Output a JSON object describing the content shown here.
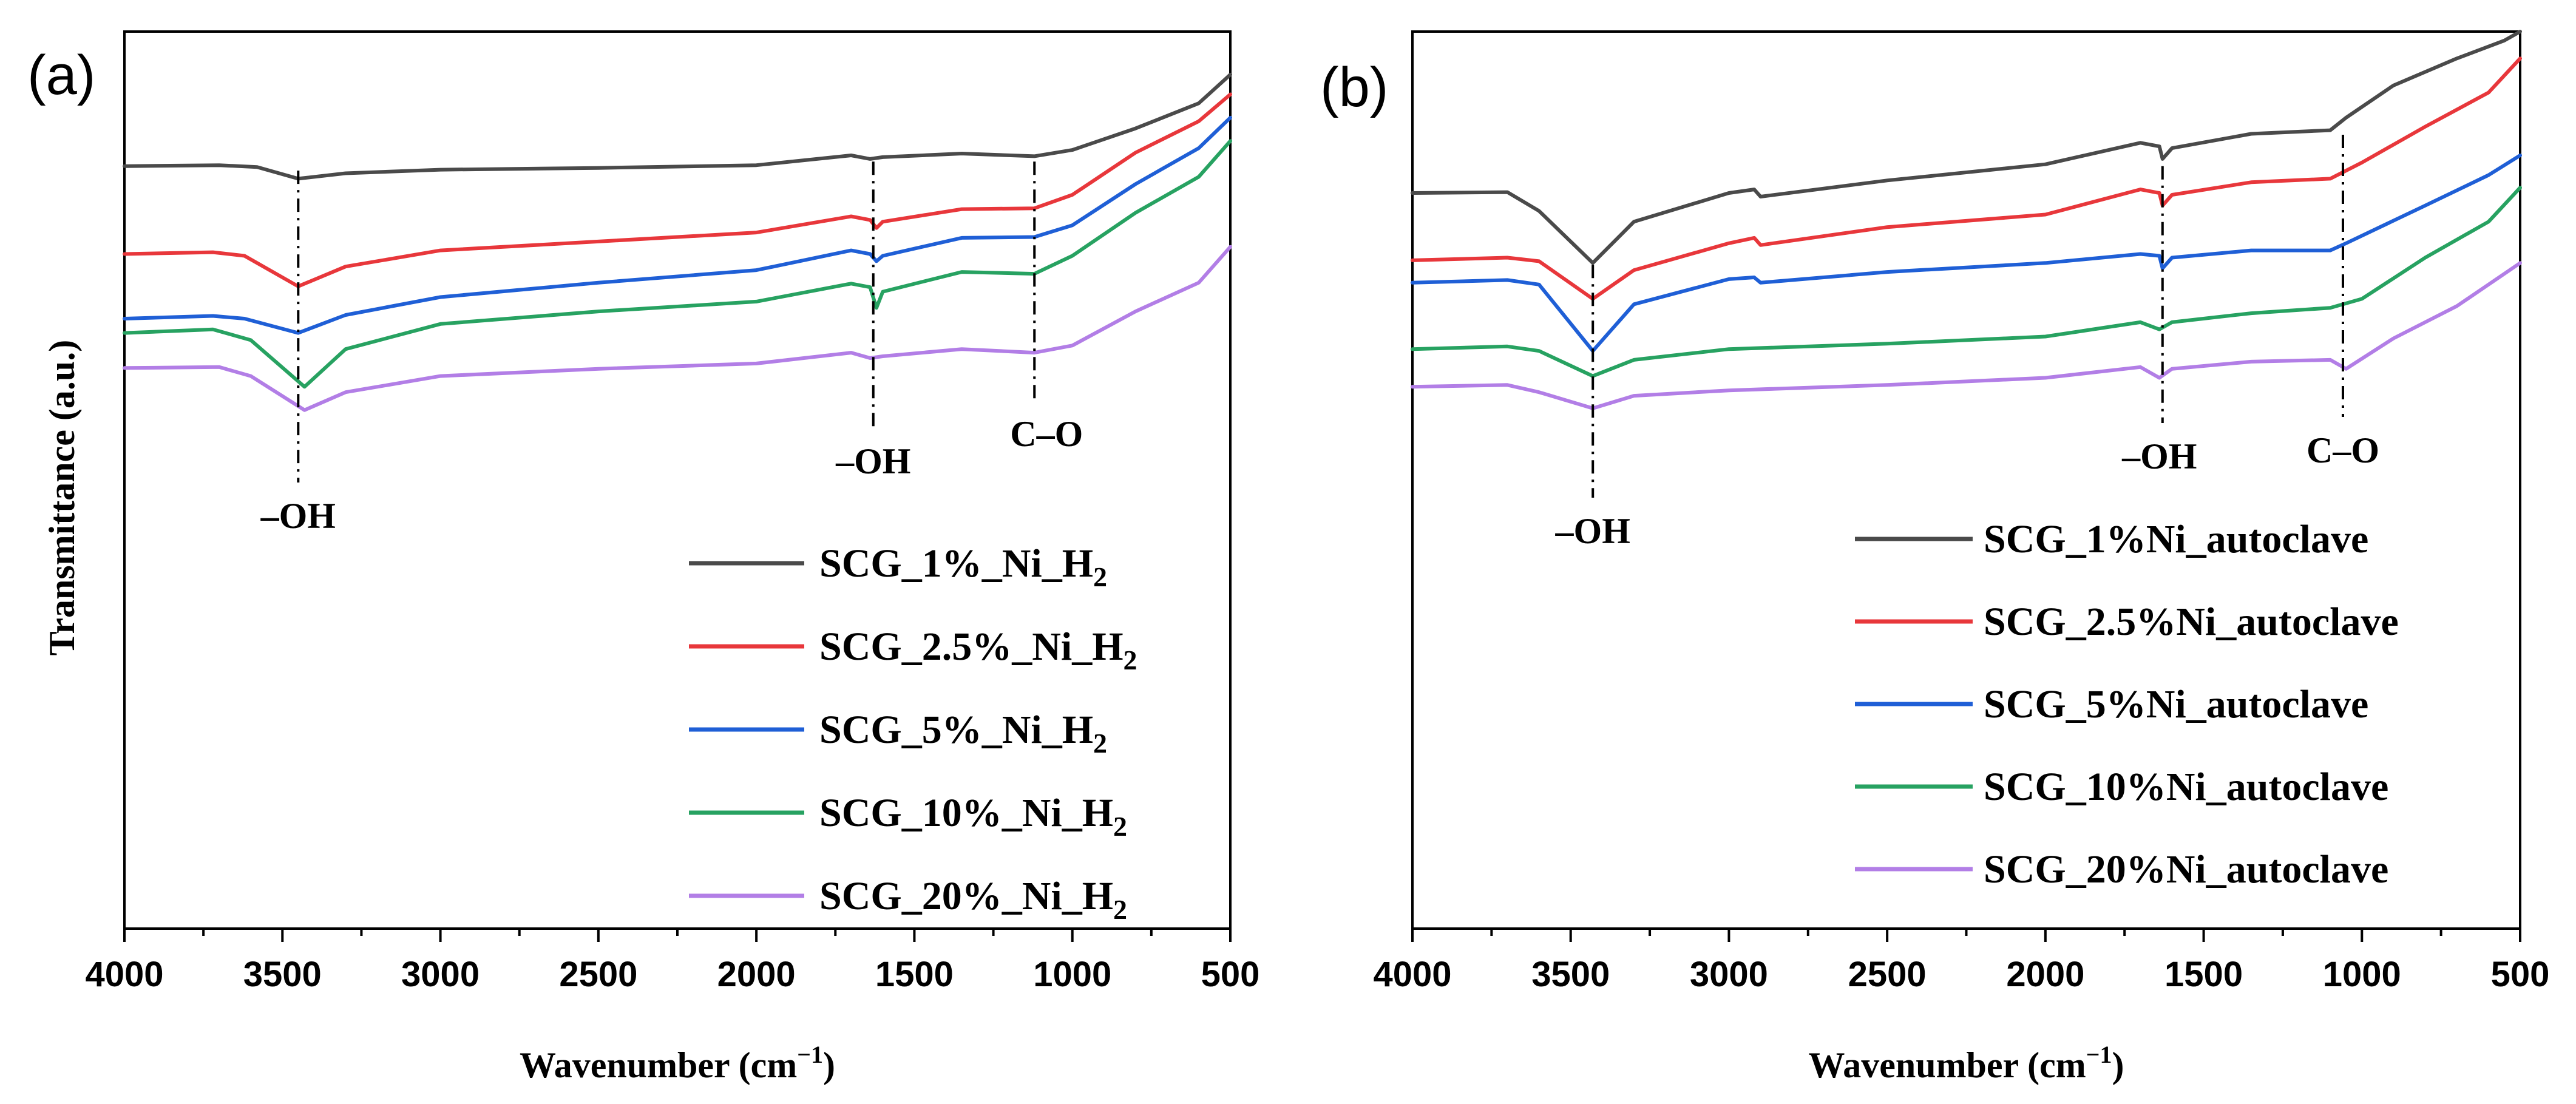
{
  "chart_data": [
    {
      "type": "line",
      "panel_label": "(a)",
      "xlabel_main": "Wavenumber (cm",
      "xlabel_sup": "−1",
      "xlabel_close": ")",
      "ylabel": "Transmittance (a.u.)",
      "xlim": [
        4000,
        500
      ],
      "x_ticks": [
        "4000",
        "3500",
        "3000",
        "2500",
        "2000",
        "1500",
        "1000",
        "500"
      ],
      "ylim": [
        0,
        100
      ],
      "legend_position": "bottom-right",
      "annotations": [
        {
          "label": "–OH",
          "x": 3450,
          "y_top": 84.5
        },
        {
          "label": "–OH",
          "x": 1630,
          "y_top": 85.5
        },
        {
          "label": "C–O",
          "x": 1120,
          "y_top": 85.5
        }
      ],
      "series": [
        {
          "name": "SCG_1%_Ni_H",
          "sub": "2",
          "color": "#4a4a4a",
          "x": [
            4000,
            3700,
            3580,
            3450,
            3300,
            3000,
            2500,
            2000,
            1700,
            1640,
            1600,
            1350,
            1120,
            1000,
            800,
            600,
            500
          ],
          "y": [
            85.0,
            85.1,
            84.9,
            83.6,
            84.2,
            84.6,
            84.8,
            85.1,
            86.2,
            85.8,
            86.0,
            86.4,
            86.1,
            86.8,
            89.2,
            92.0,
            95.2
          ]
        },
        {
          "name": "SCG_2.5%_Ni_H",
          "sub": "2",
          "color": "#e8373b",
          "x": [
            4000,
            3720,
            3620,
            3450,
            3300,
            3000,
            2500,
            2000,
            1700,
            1640,
            1620,
            1600,
            1350,
            1120,
            1000,
            800,
            600,
            500
          ],
          "y": [
            75.2,
            75.4,
            75.0,
            71.6,
            73.8,
            75.6,
            76.6,
            77.6,
            79.4,
            79.0,
            78.1,
            78.8,
            80.2,
            80.3,
            81.8,
            86.5,
            90.0,
            93.0
          ]
        },
        {
          "name": "SCG_5%_Ni_H",
          "sub": "2",
          "color": "#1f5fd6",
          "x": [
            4000,
            3720,
            3620,
            3450,
            3300,
            3000,
            2500,
            2000,
            1700,
            1640,
            1620,
            1600,
            1350,
            1120,
            1000,
            800,
            600,
            500
          ],
          "y": [
            68.0,
            68.3,
            68.0,
            66.4,
            68.4,
            70.4,
            72.0,
            73.4,
            75.6,
            75.2,
            74.4,
            75.0,
            77.0,
            77.1,
            78.4,
            83.0,
            87.0,
            90.4
          ]
        },
        {
          "name": "SCG_10%_Ni_H",
          "sub": "2",
          "color": "#27a261",
          "x": [
            4000,
            3720,
            3600,
            3430,
            3300,
            3000,
            2500,
            2000,
            1700,
            1640,
            1620,
            1600,
            1350,
            1120,
            1000,
            800,
            600,
            500
          ],
          "y": [
            66.4,
            66.8,
            65.6,
            60.4,
            64.6,
            67.4,
            68.8,
            69.9,
            71.9,
            71.5,
            69.2,
            71.0,
            73.2,
            73.0,
            75.0,
            79.8,
            83.8,
            87.8
          ]
        },
        {
          "name": "SCG_20%_Ni_H",
          "sub": "2",
          "color": "#b27ee6",
          "x": [
            4000,
            3700,
            3600,
            3430,
            3300,
            3000,
            2500,
            2000,
            1700,
            1640,
            1600,
            1350,
            1120,
            1000,
            800,
            600,
            500
          ],
          "y": [
            62.5,
            62.6,
            61.6,
            57.8,
            59.8,
            61.6,
            62.4,
            63.0,
            64.2,
            63.6,
            63.8,
            64.6,
            64.2,
            65.0,
            68.8,
            72.0,
            76.0
          ]
        }
      ]
    },
    {
      "type": "line",
      "panel_label": "(b)",
      "xlabel_main": "Wavenumber (cm",
      "xlabel_sup": "−1",
      "xlabel_close": ")",
      "ylabel": "",
      "xlim": [
        4000,
        500
      ],
      "x_ticks": [
        "4000",
        "3500",
        "3000",
        "2500",
        "2000",
        "1500",
        "1000",
        "500"
      ],
      "ylim": [
        0,
        100
      ],
      "legend_position": "bottom-right",
      "annotations": [
        {
          "label": "–OH",
          "x": 3430,
          "y_top": 74.0
        },
        {
          "label": "–OH",
          "x": 1630,
          "y_top": 85.0
        },
        {
          "label": "C–O",
          "x": 1060,
          "y_top": 88.5
        }
      ],
      "series": [
        {
          "name": "SCG_1%Ni_autoclave",
          "sub": "",
          "color": "#4a4a4a",
          "x": [
            4000,
            3700,
            3600,
            3430,
            3300,
            3000,
            2920,
            2900,
            2500,
            2000,
            1700,
            1640,
            1630,
            1600,
            1350,
            1100,
            1050,
            900,
            700,
            550,
            500
          ],
          "y": [
            82.0,
            82.1,
            80.0,
            74.2,
            78.8,
            82.0,
            82.4,
            81.6,
            83.4,
            85.2,
            87.6,
            87.2,
            85.8,
            87.0,
            88.6,
            89.0,
            90.4,
            94.0,
            97.0,
            99.0,
            100.0
          ]
        },
        {
          "name": "SCG_2.5%Ni_autoclave",
          "sub": "",
          "color": "#e8373b",
          "x": [
            4000,
            3700,
            3600,
            3430,
            3300,
            3000,
            2920,
            2900,
            2500,
            2000,
            1700,
            1640,
            1630,
            1600,
            1350,
            1100,
            1000,
            800,
            600,
            500
          ],
          "y": [
            74.5,
            74.8,
            74.4,
            70.2,
            73.4,
            76.4,
            77.0,
            76.2,
            78.2,
            79.6,
            82.4,
            82.0,
            80.6,
            81.8,
            83.2,
            83.6,
            85.4,
            89.4,
            93.2,
            97.0
          ]
        },
        {
          "name": "SCG_5%Ni_autoclave",
          "sub": "",
          "color": "#1f5fd6",
          "x": [
            4000,
            3700,
            3600,
            3430,
            3300,
            3000,
            2920,
            2900,
            2500,
            2000,
            1700,
            1640,
            1630,
            1600,
            1350,
            1100,
            1050,
            800,
            600,
            500
          ],
          "y": [
            72.0,
            72.3,
            71.8,
            64.4,
            69.6,
            72.4,
            72.6,
            72.0,
            73.2,
            74.2,
            75.2,
            75.0,
            73.6,
            74.8,
            75.6,
            75.6,
            76.4,
            80.6,
            84.0,
            86.2
          ]
        },
        {
          "name": "SCG_10%Ni_autoclave",
          "sub": "",
          "color": "#27a261",
          "x": [
            4000,
            3700,
            3600,
            3430,
            3300,
            3000,
            2500,
            2000,
            1700,
            1640,
            1600,
            1350,
            1100,
            1000,
            800,
            600,
            500
          ],
          "y": [
            64.6,
            64.9,
            64.4,
            61.6,
            63.4,
            64.6,
            65.2,
            66.0,
            67.6,
            66.8,
            67.6,
            68.6,
            69.2,
            70.2,
            74.8,
            78.8,
            82.6
          ]
        },
        {
          "name": "SCG_20%Ni_autoclave",
          "sub": "",
          "color": "#b27ee6",
          "x": [
            4000,
            3700,
            3600,
            3430,
            3300,
            3000,
            2500,
            2000,
            1700,
            1640,
            1600,
            1350,
            1100,
            1050,
            900,
            700,
            500
          ],
          "y": [
            60.4,
            60.6,
            59.8,
            58.0,
            59.4,
            60.0,
            60.6,
            61.4,
            62.6,
            61.4,
            62.4,
            63.2,
            63.4,
            62.4,
            65.8,
            69.4,
            74.2
          ]
        }
      ]
    }
  ]
}
